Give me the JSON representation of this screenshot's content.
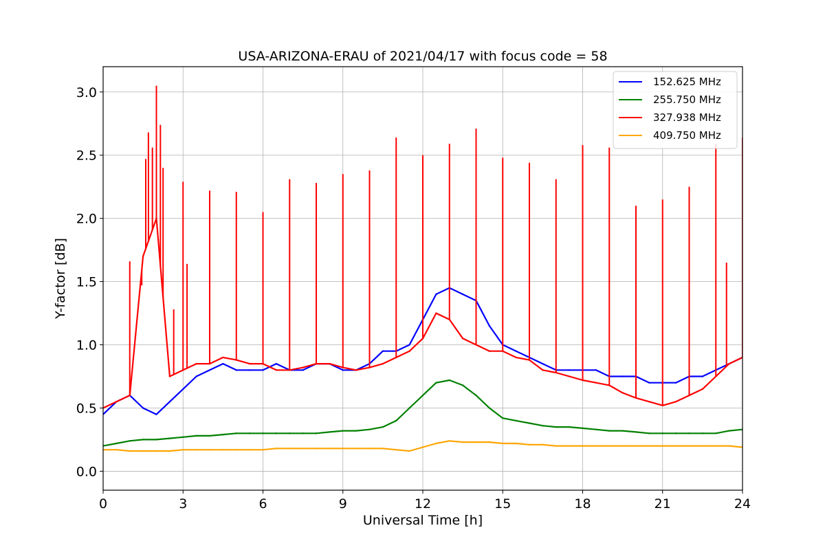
{
  "chart_data": {
    "type": "line",
    "title": "USA-ARIZONA-ERAU of 2021/04/17 with focus code = 58",
    "xlabel": "Universal Time [h]",
    "ylabel": "Y-factor [dB]",
    "xlim": [
      0,
      24
    ],
    "ylim": [
      -0.15,
      3.2
    ],
    "xticks": [
      0,
      3,
      6,
      9,
      12,
      15,
      18,
      21,
      24
    ],
    "xtick_labels": [
      "0",
      "3",
      "6",
      "9",
      "12",
      "15",
      "18",
      "21",
      "24"
    ],
    "yticks": [
      0.0,
      0.5,
      1.0,
      1.5,
      2.0,
      2.5,
      3.0
    ],
    "ytick_labels": [
      "0.0",
      "0.5",
      "1.0",
      "1.5",
      "2.0",
      "2.5",
      "3.0"
    ],
    "grid": true,
    "legend_position": "top-right",
    "series": [
      {
        "name": "152.625 MHz",
        "color": "#0000ff",
        "x": [
          0,
          0.5,
          1,
          1.5,
          2,
          2.5,
          3,
          3.5,
          4,
          4.5,
          5,
          5.5,
          6,
          6.5,
          7,
          7.5,
          8,
          8.5,
          9,
          9.5,
          10,
          10.5,
          11,
          11.5,
          12,
          12.5,
          13,
          13.5,
          14,
          14.5,
          15,
          15.5,
          16,
          16.5,
          17,
          17.5,
          18,
          18.5,
          19,
          19.5,
          20,
          20.5,
          21,
          21.5,
          22,
          22.5,
          23,
          23.5,
          24
        ],
        "y": [
          0.45,
          0.55,
          0.6,
          0.5,
          0.45,
          0.55,
          0.65,
          0.75,
          0.8,
          0.85,
          0.8,
          0.8,
          0.8,
          0.85,
          0.8,
          0.8,
          0.85,
          0.85,
          0.8,
          0.8,
          0.85,
          0.95,
          0.95,
          1.0,
          1.2,
          1.4,
          1.45,
          1.4,
          1.35,
          1.15,
          1.0,
          0.95,
          0.9,
          0.85,
          0.8,
          0.8,
          0.8,
          0.8,
          0.75,
          0.75,
          0.75,
          0.7,
          0.7,
          0.7,
          0.75,
          0.75,
          0.8,
          0.85,
          0.9
        ]
      },
      {
        "name": "255.750 MHz",
        "color": "#008000",
        "x": [
          0,
          0.5,
          1,
          1.5,
          2,
          2.5,
          3,
          3.5,
          4,
          4.5,
          5,
          5.5,
          6,
          6.5,
          7,
          7.5,
          8,
          8.5,
          9,
          9.5,
          10,
          10.5,
          11,
          11.5,
          12,
          12.5,
          13,
          13.5,
          14,
          14.5,
          15,
          15.5,
          16,
          16.5,
          17,
          17.5,
          18,
          18.5,
          19,
          19.5,
          20,
          20.5,
          21,
          21.5,
          22,
          22.5,
          23,
          23.5,
          24
        ],
        "y": [
          0.2,
          0.22,
          0.24,
          0.25,
          0.25,
          0.26,
          0.27,
          0.28,
          0.28,
          0.29,
          0.3,
          0.3,
          0.3,
          0.3,
          0.3,
          0.3,
          0.3,
          0.31,
          0.32,
          0.32,
          0.33,
          0.35,
          0.4,
          0.5,
          0.6,
          0.7,
          0.72,
          0.68,
          0.6,
          0.5,
          0.42,
          0.4,
          0.38,
          0.36,
          0.35,
          0.35,
          0.34,
          0.33,
          0.32,
          0.32,
          0.31,
          0.3,
          0.3,
          0.3,
          0.3,
          0.3,
          0.3,
          0.32,
          0.33
        ]
      },
      {
        "name": "327.938 MHz",
        "color": "#ff0000",
        "x": [
          0,
          0.5,
          1,
          1.5,
          2,
          2.5,
          3,
          3.5,
          4,
          4.5,
          5,
          5.5,
          6,
          6.5,
          7,
          7.5,
          8,
          8.5,
          9,
          9.5,
          10,
          10.5,
          11,
          11.5,
          12,
          12.5,
          13,
          13.5,
          14,
          14.5,
          15,
          15.5,
          16,
          16.5,
          17,
          17.5,
          18,
          18.5,
          19,
          19.5,
          20,
          20.5,
          21,
          21.5,
          22,
          22.5,
          23,
          23.5,
          24
        ],
        "y": [
          0.5,
          0.55,
          0.6,
          1.7,
          2.0,
          0.75,
          0.8,
          0.85,
          0.85,
          0.9,
          0.88,
          0.85,
          0.85,
          0.8,
          0.8,
          0.82,
          0.85,
          0.85,
          0.82,
          0.8,
          0.82,
          0.85,
          0.9,
          0.95,
          1.05,
          1.25,
          1.2,
          1.05,
          1.0,
          0.95,
          0.95,
          0.9,
          0.88,
          0.8,
          0.78,
          0.75,
          0.72,
          0.7,
          0.68,
          0.62,
          0.58,
          0.55,
          0.52,
          0.55,
          0.6,
          0.65,
          0.75,
          0.85,
          0.9
        ],
        "spikes": [
          {
            "x": 1.0,
            "y": 1.66
          },
          {
            "x": 1.45,
            "y": 1.47
          },
          {
            "x": 1.6,
            "y": 2.47
          },
          {
            "x": 1.7,
            "y": 2.68
          },
          {
            "x": 1.85,
            "y": 2.56
          },
          {
            "x": 2.0,
            "y": 3.05
          },
          {
            "x": 2.15,
            "y": 2.74
          },
          {
            "x": 2.25,
            "y": 2.4
          },
          {
            "x": 2.65,
            "y": 1.28
          },
          {
            "x": 3.0,
            "y": 2.29
          },
          {
            "x": 3.15,
            "y": 1.64
          },
          {
            "x": 4.0,
            "y": 2.22
          },
          {
            "x": 5.0,
            "y": 2.21
          },
          {
            "x": 6.0,
            "y": 2.05
          },
          {
            "x": 7.0,
            "y": 2.31
          },
          {
            "x": 8.0,
            "y": 2.28
          },
          {
            "x": 9.0,
            "y": 2.35
          },
          {
            "x": 10.0,
            "y": 2.38
          },
          {
            "x": 11.0,
            "y": 2.64
          },
          {
            "x": 12.0,
            "y": 2.5
          },
          {
            "x": 13.0,
            "y": 2.59
          },
          {
            "x": 14.0,
            "y": 2.71
          },
          {
            "x": 15.0,
            "y": 2.48
          },
          {
            "x": 16.0,
            "y": 2.44
          },
          {
            "x": 17.0,
            "y": 2.31
          },
          {
            "x": 18.0,
            "y": 2.58
          },
          {
            "x": 19.0,
            "y": 2.56
          },
          {
            "x": 20.0,
            "y": 2.1
          },
          {
            "x": 21.0,
            "y": 2.15
          },
          {
            "x": 22.0,
            "y": 2.25
          },
          {
            "x": 23.0,
            "y": 2.59
          },
          {
            "x": 23.4,
            "y": 1.65
          },
          {
            "x": 24.0,
            "y": 2.64
          }
        ]
      },
      {
        "name": "409.750 MHz",
        "color": "#ffa500",
        "x": [
          0,
          0.5,
          1,
          1.5,
          2,
          2.5,
          3,
          3.5,
          4,
          4.5,
          5,
          5.5,
          6,
          6.5,
          7,
          7.5,
          8,
          8.5,
          9,
          9.5,
          10,
          10.5,
          11,
          11.5,
          12,
          12.5,
          13,
          13.5,
          14,
          14.5,
          15,
          15.5,
          16,
          16.5,
          17,
          17.5,
          18,
          18.5,
          19,
          19.5,
          20,
          20.5,
          21,
          21.5,
          22,
          22.5,
          23,
          23.5,
          24
        ],
        "y": [
          0.17,
          0.17,
          0.16,
          0.16,
          0.16,
          0.16,
          0.17,
          0.17,
          0.17,
          0.17,
          0.17,
          0.17,
          0.17,
          0.18,
          0.18,
          0.18,
          0.18,
          0.18,
          0.18,
          0.18,
          0.18,
          0.18,
          0.17,
          0.16,
          0.19,
          0.22,
          0.24,
          0.23,
          0.23,
          0.23,
          0.22,
          0.22,
          0.21,
          0.21,
          0.2,
          0.2,
          0.2,
          0.2,
          0.2,
          0.2,
          0.2,
          0.2,
          0.2,
          0.2,
          0.2,
          0.2,
          0.2,
          0.2,
          0.19
        ]
      }
    ]
  }
}
